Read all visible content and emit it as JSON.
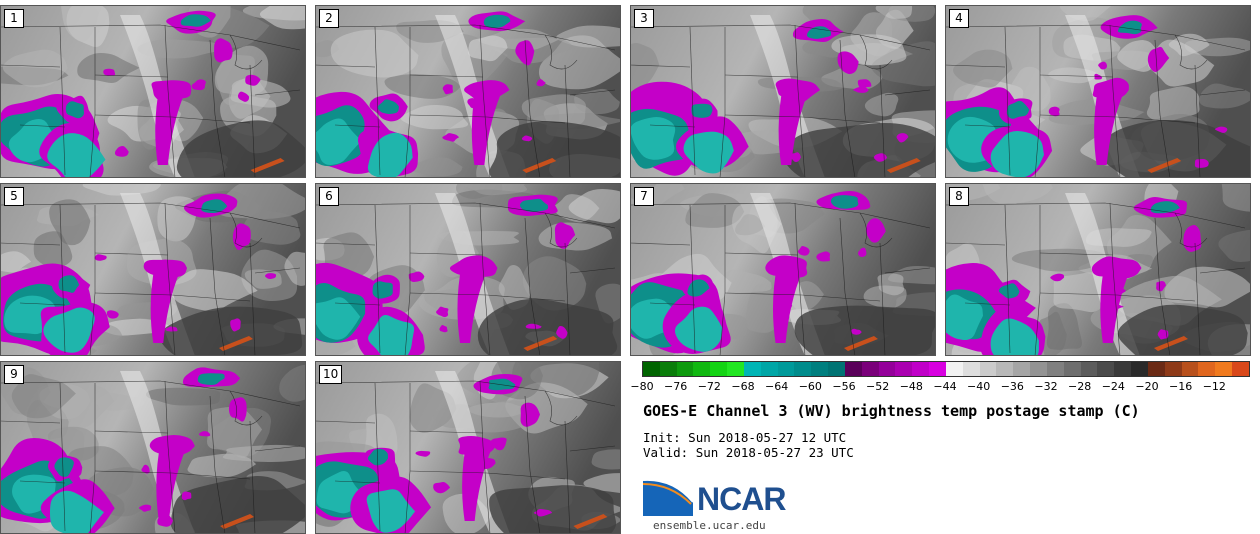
{
  "title": "GOES-E Channel 3 (WV) brightness temp postage stamp (C)",
  "init_label": "Init:",
  "init_value": "Sun 2018-05-27 12 UTC",
  "valid_label": "Valid:",
  "valid_value": "Sun 2018-05-27 23 UTC",
  "logo_text": "NCAR",
  "website": "ensemble.ucar.edu",
  "stamps": [
    {
      "label": "1",
      "seed": 11
    },
    {
      "label": "2",
      "seed": 23
    },
    {
      "label": "3",
      "seed": 37
    },
    {
      "label": "4",
      "seed": 41
    },
    {
      "label": "5",
      "seed": 53
    },
    {
      "label": "6",
      "seed": 67
    },
    {
      "label": "7",
      "seed": 71
    },
    {
      "label": "8",
      "seed": 89
    },
    {
      "label": "9",
      "seed": 97
    },
    {
      "label": "10",
      "seed": 103
    }
  ],
  "colorbar": {
    "colors": [
      "#006400",
      "#0a7d0a",
      "#0d9a0d",
      "#10b810",
      "#14d414",
      "#22e622",
      "#00b5b5",
      "#00a6a6",
      "#009a9a",
      "#008c8c",
      "#007f7f",
      "#007373",
      "#5a005a",
      "#7a007a",
      "#94009a",
      "#aa00b0",
      "#c000c8",
      "#d800e0",
      "#f2f2f2",
      "#dedede",
      "#cbcbcb",
      "#b8b8b8",
      "#a5a5a5",
      "#939393",
      "#808080",
      "#6e6e6e",
      "#5c5c5c",
      "#4b4b4b",
      "#3a3a3a",
      "#2a2a2a",
      "#6b2a15",
      "#8e3a18",
      "#b8501c",
      "#e0661e",
      "#f07a1e",
      "#d9481a"
    ],
    "tick_values": [
      "−80",
      "−76",
      "−72",
      "−68",
      "−64",
      "−60",
      "−56",
      "−52",
      "−48",
      "−44",
      "−40",
      "−36",
      "−32",
      "−28",
      "−24",
      "−20",
      "−16",
      "−12"
    ],
    "min": -80,
    "max": -8
  },
  "palette": {
    "cold_teal": "#1fb5ac",
    "deep_teal": "#0e8f8a",
    "magenta": "#c400c8",
    "deep_magenta": "#9000a0",
    "warm_orange": "#c8501c",
    "boundary": "#1a1a1a"
  }
}
